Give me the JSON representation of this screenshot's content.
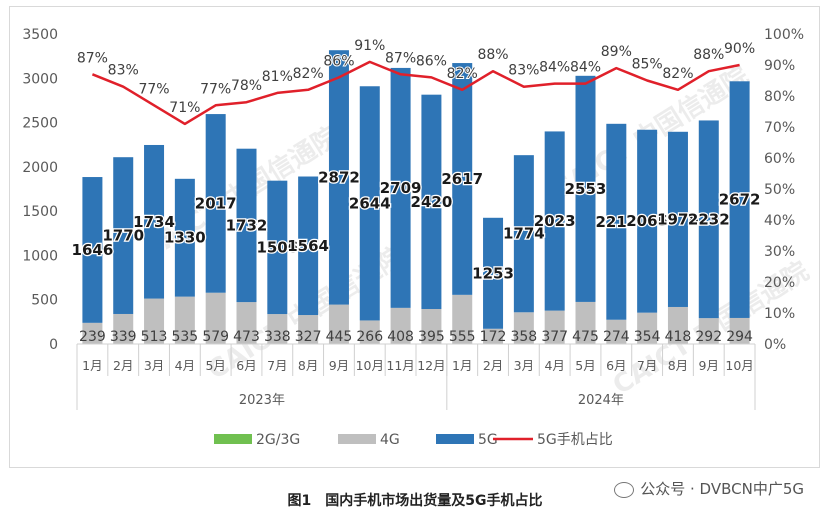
{
  "caption": "图1　国内手机市场出货量及5G手机占比",
  "source_tag": "公众号 · DVBCN中广5G",
  "watermark": "CAICT 中国信通院",
  "colors": {
    "g23": "#70c050",
    "g4": "#bfbfbf",
    "g5": "#2e75b6",
    "ratio": "#e0202a",
    "axis": "#7f7f7f"
  },
  "chart_data": {
    "type": "bar",
    "stacked": true,
    "categories": [
      "1月",
      "2月",
      "3月",
      "4月",
      "5月",
      "6月",
      "7月",
      "8月",
      "9月",
      "10月",
      "11月",
      "12月",
      "1月",
      "2月",
      "3月",
      "4月",
      "5月",
      "6月",
      "7月",
      "8月",
      "9月",
      "10月"
    ],
    "year_groups": [
      {
        "label": "2023年",
        "count": 12
      },
      {
        "label": "2024年",
        "count": 10
      }
    ],
    "series": [
      {
        "name": "2G/3G",
        "values": [
          0,
          0,
          0,
          0,
          0,
          0,
          0,
          0,
          0,
          0,
          0,
          0,
          0,
          0,
          0,
          0,
          0,
          0,
          0,
          0,
          0,
          0
        ]
      },
      {
        "name": "4G",
        "values": [
          239,
          339,
          513,
          535,
          579,
          473,
          338,
          327,
          445,
          266,
          408,
          395,
          555,
          172,
          358,
          377,
          475,
          274,
          354,
          418,
          292,
          294
        ]
      },
      {
        "name": "5G",
        "values": [
          1646,
          1770,
          1734,
          1330,
          2017,
          1732,
          1506,
          1564,
          2872,
          2644,
          2709,
          2420,
          2617,
          1253,
          1774,
          2023,
          2553,
          2212,
          2065,
          1978,
          2232,
          2672
        ]
      }
    ],
    "line_series": {
      "name": "5G手机占比",
      "axis": "right",
      "labels": [
        "87%",
        "83%",
        "77%",
        "71%",
        "77%",
        "78%",
        "81%",
        "82%",
        "86%",
        "91%",
        "87%",
        "86%",
        "82%",
        "88%",
        "83%",
        "84%",
        "84%",
        "89%",
        "85%",
        "82%",
        "88%",
        "90%"
      ],
      "values": [
        87,
        83,
        77,
        71,
        77,
        78,
        81,
        82,
        86,
        91,
        87,
        86,
        82,
        88,
        83,
        84,
        84,
        89,
        85,
        82,
        88,
        90
      ]
    },
    "ylim": [
      0,
      3500
    ],
    "y_ticks": [
      "0",
      "500",
      "1000",
      "1500",
      "2000",
      "2500",
      "3000",
      "3500"
    ],
    "y2lim": [
      0,
      100
    ],
    "y2_ticks": [
      "0%",
      "10%",
      "20%",
      "30%",
      "40%",
      "50%",
      "60%",
      "70%",
      "80%",
      "90%",
      "100%"
    ],
    "legend": [
      "2G/3G",
      "4G",
      "5G",
      "5G手机占比"
    ],
    "legend_position": "bottom",
    "grid": false
  }
}
